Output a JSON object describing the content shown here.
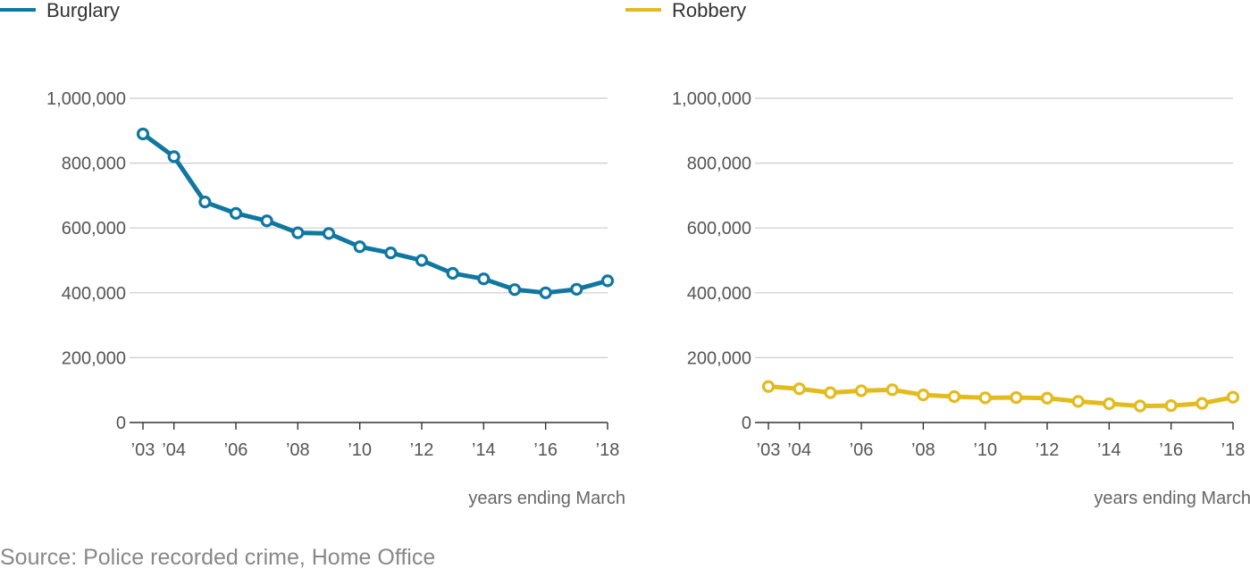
{
  "source": "Source: Police recorded crime, Home Office",
  "chart_data": [
    {
      "type": "line",
      "legend": "Burglary",
      "color": "#0f77a0",
      "x": [
        2003,
        2004,
        2005,
        2006,
        2007,
        2008,
        2009,
        2010,
        2011,
        2012,
        2013,
        2014,
        2015,
        2016,
        2017,
        2018
      ],
      "series": [
        {
          "name": "Burglary",
          "values": [
            890000,
            820000,
            680000,
            645000,
            622000,
            585000,
            583000,
            542000,
            523000,
            500000,
            460000,
            443000,
            410000,
            400000,
            411000,
            437000
          ]
        }
      ],
      "ylim": [
        0,
        1000000
      ],
      "yticks": [
        0,
        200000,
        400000,
        600000,
        800000,
        1000000
      ],
      "ytick_labels": [
        "0",
        "200,000",
        "400,000",
        "600,000",
        "800,000",
        "1,000,000"
      ],
      "xtick_values": [
        2003,
        2004,
        2006,
        2008,
        2010,
        2012,
        2014,
        2016,
        2018
      ],
      "xtick_labels": [
        "’03",
        "’04",
        "’06",
        "’08",
        "’10",
        "’12",
        "’14",
        "’16",
        "’18"
      ],
      "xlabel": "years ending March",
      "grid": true,
      "legend_position": "top-left"
    },
    {
      "type": "line",
      "legend": "Robbery",
      "color": "#e3bb1d",
      "x": [
        2003,
        2004,
        2005,
        2006,
        2007,
        2008,
        2009,
        2010,
        2011,
        2012,
        2013,
        2014,
        2015,
        2016,
        2017,
        2018
      ],
      "series": [
        {
          "name": "Robbery",
          "values": [
            111000,
            104000,
            92000,
            98000,
            101000,
            85000,
            80000,
            76000,
            77000,
            75000,
            65000,
            58000,
            51000,
            52000,
            59000,
            78000
          ]
        }
      ],
      "ylim": [
        0,
        1000000
      ],
      "yticks": [
        0,
        200000,
        400000,
        600000,
        800000,
        1000000
      ],
      "ytick_labels": [
        "0",
        "200,000",
        "400,000",
        "600,000",
        "800,000",
        "1,000,000"
      ],
      "xtick_values": [
        2003,
        2004,
        2006,
        2008,
        2010,
        2012,
        2014,
        2016,
        2018
      ],
      "xtick_labels": [
        "’03",
        "’04",
        "’06",
        "’08",
        "’10",
        "’12",
        "’14",
        "’16",
        "’18"
      ],
      "xlabel": "years ending March",
      "grid": true,
      "legend_position": "top-left"
    }
  ]
}
